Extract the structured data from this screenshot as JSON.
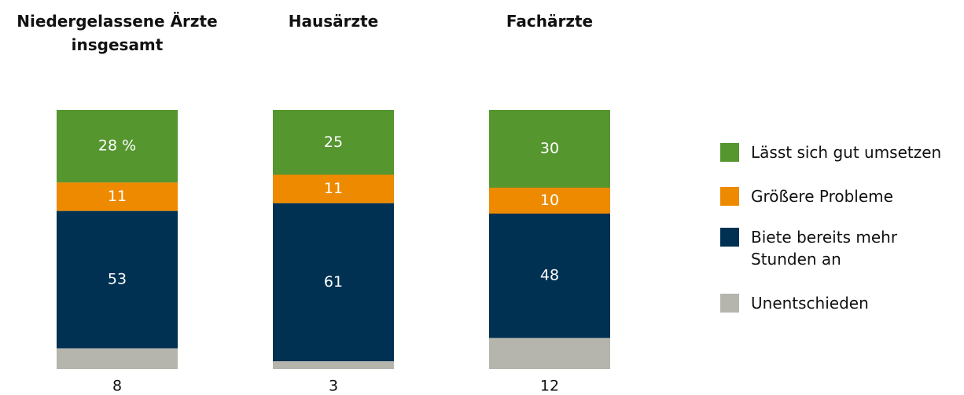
{
  "chart_data": {
    "type": "stacked_bar",
    "categories": [
      "Niedergelassene Ärzte insgesamt",
      "Hausärzte",
      "Fachärzte"
    ],
    "series": [
      {
        "name": "Lässt sich gut umsetzen",
        "color": "#55962f",
        "values": [
          28,
          25,
          30
        ],
        "value_labels": [
          "28 %",
          "25",
          "30"
        ]
      },
      {
        "name": "Größere Probleme",
        "color": "#ee8a00",
        "values": [
          11,
          11,
          10
        ]
      },
      {
        "name": "Biete bereits mehr Stunden an",
        "color": "#003152",
        "values": [
          53,
          61,
          48
        ]
      },
      {
        "name": "Unentschieden",
        "color": "#b5b4ad",
        "values": [
          8,
          3,
          12
        ]
      }
    ],
    "ylim": [
      0,
      100
    ]
  }
}
